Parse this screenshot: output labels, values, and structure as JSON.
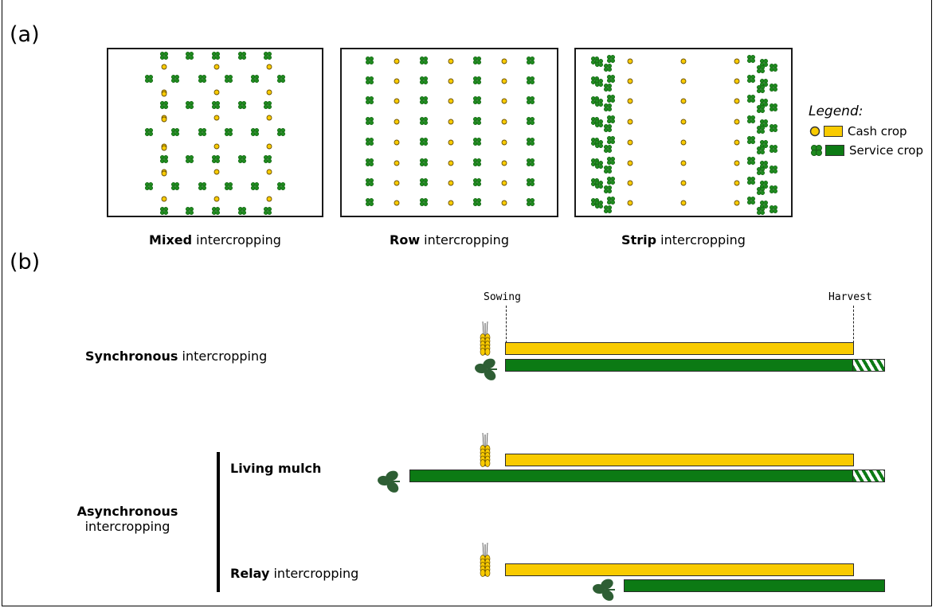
{
  "panel_a": {
    "label": "(a)",
    "captions": [
      {
        "bold": "Mixed",
        "rest": " intercropping"
      },
      {
        "bold": "Row",
        "rest": " intercropping"
      },
      {
        "bold": "Strip",
        "rest": " intercropping"
      }
    ],
    "legend": {
      "title": "Legend:",
      "cash": "Cash crop",
      "service": "Service crop"
    }
  },
  "panel_b": {
    "label": "(b)",
    "sowing": "Sowing",
    "harvest": "Harvest",
    "synchronous": {
      "bold": "Synchronous",
      "rest": " intercropping"
    },
    "asynchronous": {
      "bold": "Asynchronous",
      "rest": "intercropping"
    },
    "living_mulch": "Living mulch",
    "relay": {
      "bold": "Relay",
      "rest": " intercropping"
    }
  },
  "colors": {
    "cash": "#f9cb00",
    "service": "#0c7a14",
    "service_dark": "#2e5e34"
  },
  "icons": [
    "wheat-icon",
    "clover-leaf-icon",
    "cash-crop-dot-icon",
    "service-crop-clover-icon"
  ]
}
